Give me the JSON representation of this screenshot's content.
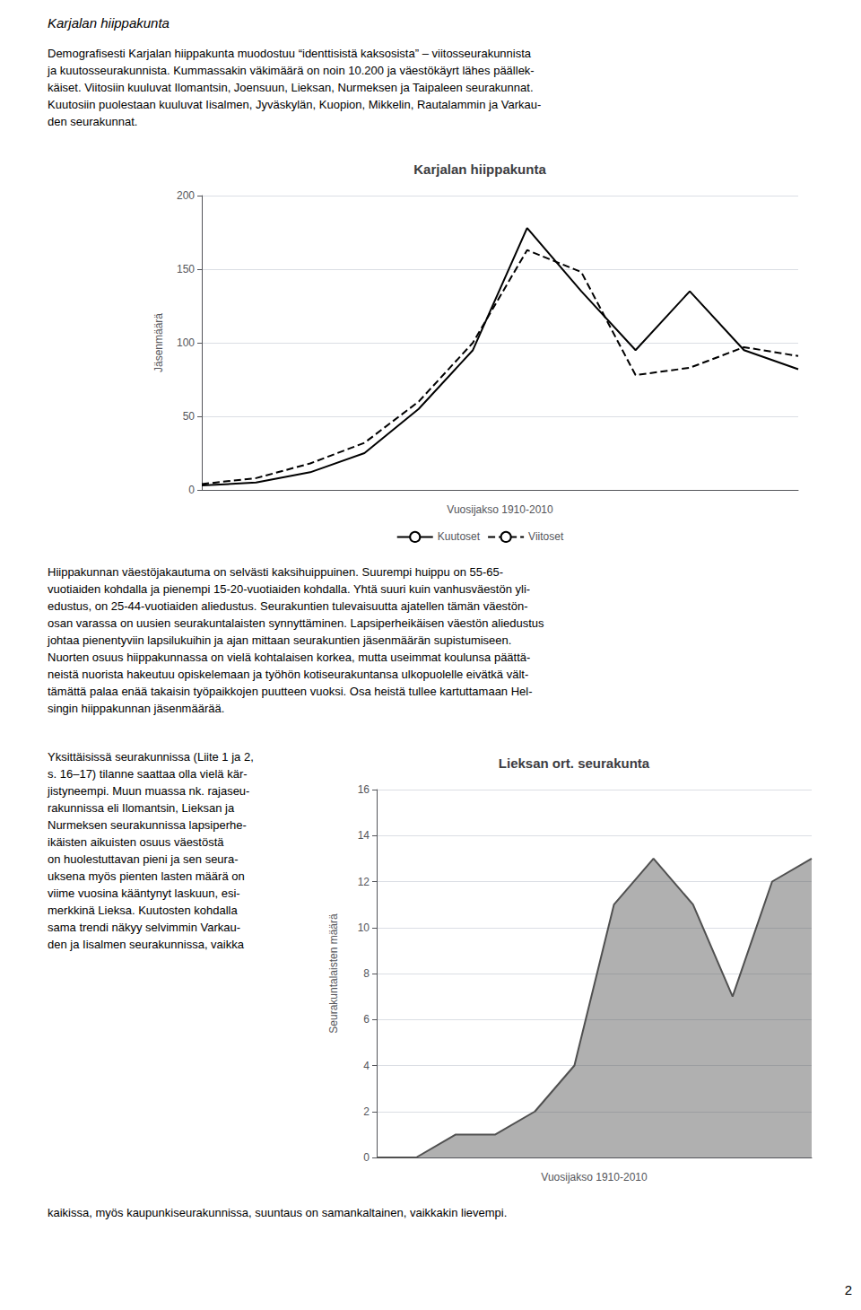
{
  "annotations": [
    "Karjalan hiippakunta",
    "Demografisesti Karjalan hiippakunta muodostuu “identtisistä kaksosista” – viitosseurakunnista\nja kuutosseurakunnista. Kummassakin väkimäärä on noin 10.200 ja väestökäyrt lähes päällek-\nkäiset. Viitosiin kuuluvat Ilomantsin, Joensuun, Lieksan, Nurmeksen ja Taipaleen seurakunnat.\nKuutosiin puolestaan kuuluvat Iisalmen, Jyväskylän, Kuopion, Mikkelin, Rautalammin ja Varkau-\nden seurakunnat.",
    "Hiippakunnan väestöjakautuma on selvästi kaksihuippuinen. Suurempi huippu on 55-65-\nvuotiaiden kohdalla ja pienempi 15-20-vuotiaiden kohdalla. Yhtä suuri kuin vanhusväestön yli-\nedustus, on 25-44-vuotiaiden aliedustus. Seurakuntien tulevaisuutta ajatellen tämän väestön-\nosan varassa on uusien seurakuntalaisten synnyttäminen. Lapsiperheikäisen väestön aliedustus\njohtaa pienentyviin lapsilukuihin ja ajan mittaan seurakuntien jäsenmäärän supistumiseen.\nNuorten osuus hiippakunnassa on vielä kohtalaisen korkea, mutta useimmat koulunsa päättä-\nneistä nuorista hakeutuu opiskelemaan ja työhön kotiseurakuntansa ulkopuolelle eivätkä vält-\ntämättä palaa enää takaisin työpaikkojen puutteen vuoksi. Osa heistä tullee kartuttamaan Hel-\nsingin hiippakunnan jäsenmäärää.",
    "Yksittäisissä seurakunnissa (Liite 1 ja 2,\ns. 16–17) tilanne saattaa olla vielä kär-\njistyneempi. Muun muassa nk. rajaseu-\nrakunnissa eli Ilomantsin, Lieksan ja\nNurmeksen seurakunnissa lapsiperhe-\nikäisten aikuisten osuus väestöstä\non huolestuttavan pieni ja sen seura-\nuksena myös pienten lasten määrä on\nviime vuosina kääntynyt laskuun, esi-\nmerkkinä Lieksa. Kuutosten kohdalla\nsama trendi näkyy selvimmin Varkau-\nden ja Iisalmen seurakunnissa, vaikka",
    "kaikissa, myös kaupunkiseurakunnissa, suuntaus on samankaltainen, vaikkakin lievempi.",
    "2"
  ],
  "chart_data": [
    {
      "type": "line",
      "title": "Karjalan hiippakunta",
      "x_label": "Vuosijakso 1910-2010",
      "y_label": "Jäsenmäärä",
      "x": [
        0,
        1,
        2,
        3,
        4,
        5,
        6,
        7,
        8,
        9,
        10,
        11
      ],
      "series": [
        {
          "name": "Kuutoset",
          "color": "#000000",
          "line_style": "solid",
          "values": [
            3,
            5,
            12,
            25,
            55,
            95,
            178,
            135,
            95,
            135,
            95,
            82
          ]
        },
        {
          "name": "Viitoset",
          "color": "#000000",
          "line_style": "dashed",
          "values": [
            4,
            8,
            18,
            32,
            60,
            100,
            163,
            148,
            78,
            83,
            97,
            91
          ]
        }
      ],
      "xlim": [
        0,
        11
      ],
      "ylim": [
        0,
        200
      ],
      "yticks": [
        0,
        50,
        100,
        150,
        200
      ],
      "grid": true,
      "legend": "bottom",
      "tick_labels": "y"
    },
    {
      "type": "area",
      "title": "Lieksan ort. seurakunta",
      "x_label": "Vuosijakso 1910-2010",
      "y_label": "Seurakuntalaisten määrä",
      "x": [
        0,
        1,
        2,
        3,
        4,
        5,
        6,
        7,
        8,
        9,
        10,
        11
      ],
      "values": [
        0,
        0,
        1,
        1,
        2,
        4,
        11,
        13,
        11,
        7,
        12,
        13
      ],
      "color": "#505050",
      "xlim": [
        0,
        11
      ],
      "ylim": [
        0,
        16
      ],
      "yticks": [
        0,
        2,
        4,
        6,
        8,
        10,
        12,
        14,
        16
      ],
      "grid": true,
      "tick_labels": "y"
    }
  ]
}
